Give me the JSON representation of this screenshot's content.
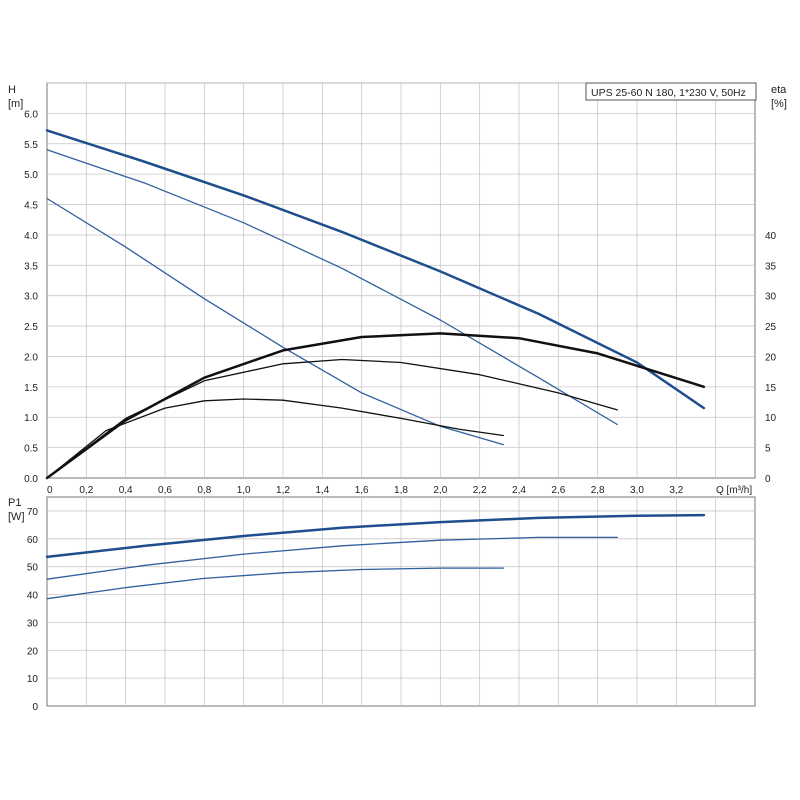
{
  "chart_data": [
    {
      "type": "line",
      "title": "UPS 25-60 N 180, 1*230 V, 50Hz",
      "ylabel": "H",
      "yunit": "[m]",
      "y2label": "eta",
      "y2unit": "[%]",
      "xlabel": "Q [m³/h]",
      "xlim": [
        0,
        3.6
      ],
      "ylim": [
        0,
        6.5
      ],
      "y2lim": [
        0,
        65
      ],
      "grid": true,
      "x_ticks": [
        "0",
        "0,2",
        "0,4",
        "0,6",
        "0,8",
        "1,0",
        "1,2",
        "1,4",
        "1,6",
        "1,8",
        "2,0",
        "2,2",
        "2,4",
        "2,6",
        "2,8",
        "3,0",
        "3,2"
      ],
      "y_ticks": [
        "0.0",
        "0.5",
        "1.0",
        "1.5",
        "2.0",
        "2.5",
        "3.0",
        "3.5",
        "4.0",
        "4.5",
        "5.0",
        "5.5",
        "6.0"
      ],
      "y2_ticks": [
        "0",
        "5",
        "10",
        "15",
        "20",
        "25",
        "30",
        "35",
        "40"
      ],
      "series": [
        {
          "axis": "y",
          "color": "#1f4e8c",
          "width": 2.5,
          "x": [
            0,
            0.5,
            1.0,
            1.5,
            2.0,
            2.5,
            3.0,
            3.34
          ],
          "y": [
            5.72,
            5.2,
            4.65,
            4.05,
            3.4,
            2.7,
            1.9,
            1.15
          ]
        },
        {
          "axis": "y",
          "color": "#2f5f9e",
          "width": 1.3,
          "x": [
            0,
            0.5,
            1.0,
            1.5,
            2.0,
            2.5,
            2.9
          ],
          "y": [
            5.4,
            4.85,
            4.2,
            3.45,
            2.6,
            1.65,
            0.88
          ]
        },
        {
          "axis": "y",
          "color": "#2f5f9e",
          "width": 1.3,
          "x": [
            0,
            0.4,
            0.8,
            1.2,
            1.6,
            2.0,
            2.32
          ],
          "y": [
            4.6,
            3.8,
            2.95,
            2.15,
            1.4,
            0.85,
            0.55
          ]
        },
        {
          "axis": "y2",
          "color": "#111111",
          "width": 2.5,
          "x": [
            0,
            0.4,
            0.8,
            1.2,
            1.6,
            2.0,
            2.4,
            2.8,
            3.34
          ],
          "y": [
            0,
            9.5,
            16.5,
            21,
            23.2,
            23.8,
            23,
            20.5,
            15
          ]
        },
        {
          "axis": "y2",
          "color": "#111111",
          "width": 1.3,
          "x": [
            0,
            0.4,
            0.8,
            1.2,
            1.5,
            1.8,
            2.2,
            2.6,
            2.9
          ],
          "y": [
            0,
            9.8,
            16,
            18.8,
            19.5,
            19,
            17,
            14,
            11.2
          ]
        },
        {
          "axis": "y2",
          "color": "#111111",
          "width": 1.3,
          "x": [
            0,
            0.3,
            0.6,
            0.8,
            1.0,
            1.2,
            1.5,
            1.8,
            2.1,
            2.32
          ],
          "y": [
            0,
            7.8,
            11.5,
            12.7,
            13,
            12.8,
            11.5,
            9.8,
            8,
            7
          ]
        }
      ]
    },
    {
      "type": "line",
      "ylabel": "P1",
      "yunit": "[W]",
      "xlim": [
        0,
        3.6
      ],
      "ylim": [
        0,
        75
      ],
      "grid": true,
      "y_ticks": [
        "0",
        "10",
        "20",
        "30",
        "40",
        "50",
        "60",
        "70"
      ],
      "series": [
        {
          "color": "#1f4e8c",
          "width": 2.5,
          "x": [
            0,
            0.5,
            1.0,
            1.5,
            2.0,
            2.5,
            3.0,
            3.34
          ],
          "y": [
            53.5,
            57.5,
            61,
            64,
            66,
            67.5,
            68.3,
            68.5
          ]
        },
        {
          "color": "#2f5f9e",
          "width": 1.3,
          "x": [
            0,
            0.5,
            1.0,
            1.5,
            2.0,
            2.5,
            2.9
          ],
          "y": [
            45.5,
            50.5,
            54.5,
            57.5,
            59.5,
            60.5,
            60.5
          ]
        },
        {
          "color": "#2f5f9e",
          "width": 1.3,
          "x": [
            0,
            0.4,
            0.8,
            1.2,
            1.6,
            2.0,
            2.32
          ],
          "y": [
            38.5,
            42.5,
            45.8,
            47.8,
            49,
            49.5,
            49.5
          ]
        }
      ]
    }
  ]
}
